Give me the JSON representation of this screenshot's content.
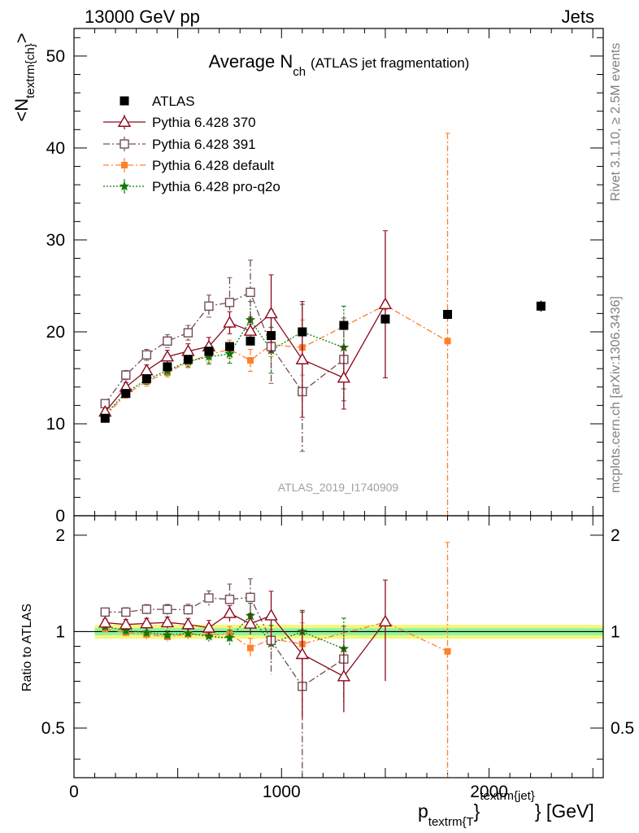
{
  "header": {
    "left": "13000 GeV pp",
    "right": "Jets"
  },
  "side_labels": {
    "rivet": "Rivet 3.1.10, ≥ 2.5M events",
    "mcplots": "mcplots.cern.ch [arXiv:1306.3436]"
  },
  "colors": {
    "atlas": "#000000",
    "p370": "#8b0a1e",
    "p391": "#734d57",
    "pdef": "#ff7f2a",
    "pq2o": "#0a7d0a"
  },
  "chart_data": {
    "type": "scatter",
    "title": "Average N",
    "title_sub": "ch",
    "title_note": "(ATLAS jet fragmentation)",
    "analysis_id": "ATLAS_2019_I1740909",
    "ylabel": "<N",
    "ylabel_sub": "textrm{ch}",
    "ylabel_end": ">",
    "xlabel_p": "p",
    "xlabel_sub": "textrm{T",
    "xlabel_sup": "textrm{jet}",
    "xlabel_brace": "}",
    "xlabel_end": "} [GeV]",
    "ratio_ylabel": "Ratio to ATLAS",
    "xlim": [
      0,
      2550
    ],
    "ylim": [
      0,
      53
    ],
    "ratio_ylim": [
      0.35,
      2.3
    ],
    "x_ticks": [
      "0",
      "1000",
      "2000"
    ],
    "y_ticks": [
      "10",
      "20",
      "30",
      "40",
      "50"
    ],
    "y_zero_label": "0",
    "ratio_ticks": [
      "0.5",
      "1",
      "2"
    ],
    "band": {
      "inner": 0.025,
      "outer": 0.05
    },
    "legend_placement": "top-left",
    "series": [
      {
        "name": "ATLAS",
        "style": "atlas",
        "x": [
          150,
          250,
          350,
          450,
          550,
          650,
          750,
          850,
          950,
          1100,
          1300,
          1500,
          1800,
          2250
        ],
        "y": [
          10.6,
          13.3,
          14.9,
          16.2,
          17.0,
          17.9,
          18.4,
          19.0,
          19.6,
          20.0,
          20.7,
          21.4,
          21.9,
          22.8
        ],
        "err": [
          0.3,
          0.3,
          0.3,
          0.3,
          0.3,
          0.3,
          0.3,
          0.4,
          0.4,
          0.4,
          0.4,
          0.5,
          0.5,
          0.6
        ]
      },
      {
        "name": "Pythia 6.428 370",
        "style": "p370",
        "x": [
          150,
          250,
          350,
          450,
          550,
          650,
          750,
          850,
          950,
          1100,
          1300,
          1500
        ],
        "y": [
          11.3,
          14.0,
          15.8,
          17.3,
          17.9,
          18.4,
          21.0,
          20.1,
          22.0,
          17.0,
          15.0,
          23.0
        ],
        "err": [
          0.3,
          0.5,
          0.6,
          0.7,
          0.8,
          1.0,
          1.2,
          1.5,
          4.2,
          6.3,
          3.4,
          8.0
        ]
      },
      {
        "name": "Pythia 6.428 391",
        "style": "p391",
        "x": [
          150,
          250,
          350,
          450,
          550,
          650,
          750,
          850,
          950,
          1100,
          1300
        ],
        "y": [
          12.2,
          15.3,
          17.5,
          19.0,
          19.9,
          22.8,
          23.2,
          24.3,
          18.4,
          13.5,
          17.0
        ],
        "err": [
          0.3,
          0.5,
          0.6,
          0.7,
          0.8,
          1.2,
          2.7,
          3.5,
          4.0,
          6.5,
          4.5
        ]
      },
      {
        "name": "Pythia 6.428 default",
        "style": "pdef",
        "x": [
          150,
          250,
          350,
          450,
          550,
          650,
          750,
          850,
          950,
          1100,
          1500,
          1800
        ],
        "y": [
          10.8,
          13.2,
          14.6,
          15.6,
          16.7,
          17.5,
          18.1,
          16.9,
          18.6,
          18.3,
          22.9,
          19.0
        ],
        "err": [
          0.3,
          0.4,
          0.5,
          0.5,
          0.6,
          0.8,
          1.0,
          1.2,
          1.3,
          3.0,
          0.5,
          22.6
        ]
      },
      {
        "name": "Pythia 6.428 pro-q2o",
        "style": "pq2o",
        "x": [
          150,
          250,
          350,
          450,
          550,
          650,
          750,
          850,
          950,
          1100,
          1300
        ],
        "y": [
          11.0,
          13.4,
          14.8,
          15.8,
          16.8,
          17.3,
          17.6,
          21.3,
          18.0,
          20.0,
          18.3
        ],
        "err": [
          0.3,
          0.4,
          0.5,
          0.5,
          0.6,
          0.8,
          1.0,
          2.0,
          2.5,
          3.0,
          4.5
        ]
      }
    ]
  }
}
